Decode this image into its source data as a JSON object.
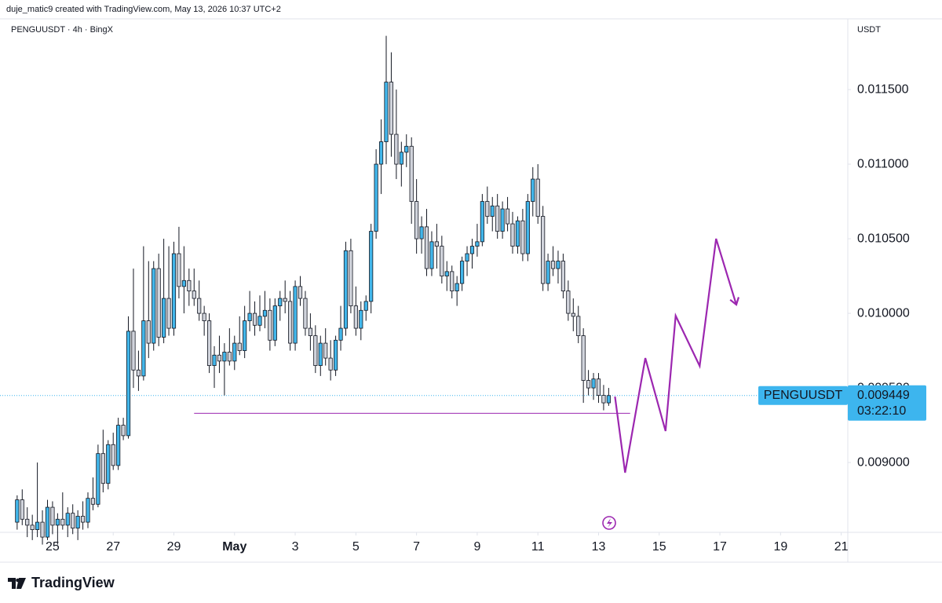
{
  "chart_data": {
    "type": "candlestick",
    "attribution": "duje_matic9 created with TradingView.com, May 13, 2026 10:37 UTC+2",
    "title": "PENGUUSDT · 4h · BingX",
    "currency": "USDT",
    "logo": "TradingView",
    "up_color": "#42b6ea",
    "down_color": "#d1d4dc",
    "xlim": [
      -36.6,
      629.2
    ],
    "xticks": [
      {
        "value": 0,
        "label": "25"
      },
      {
        "value": 48,
        "label": "27"
      },
      {
        "value": 96,
        "label": "29"
      },
      {
        "value": 144,
        "label": "May"
      },
      {
        "value": 192,
        "label": "3"
      },
      {
        "value": 240,
        "label": "5"
      },
      {
        "value": 288,
        "label": "7"
      },
      {
        "value": 336,
        "label": "9"
      },
      {
        "value": 384,
        "label": "11"
      },
      {
        "value": 432,
        "label": "13"
      },
      {
        "value": 480,
        "label": "15"
      },
      {
        "value": 528,
        "label": "17"
      },
      {
        "value": 576,
        "label": "19"
      },
      {
        "value": 624,
        "label": "21"
      }
    ],
    "ylim": [
      0.008532,
      0.011953
    ],
    "yticks": [
      {
        "value": 0.009,
        "label": "0.009000"
      },
      {
        "value": 0.0095,
        "label": "0.009500"
      },
      {
        "value": 0.01,
        "label": "0.010000"
      },
      {
        "value": 0.0105,
        "label": "0.010500"
      },
      {
        "value": 0.011,
        "label": "0.011000"
      },
      {
        "value": 0.0115,
        "label": "0.011500"
      }
    ],
    "grid": false,
    "x": [
      -28,
      -24,
      -20,
      -16,
      -12,
      -8,
      -4,
      0,
      4,
      8,
      12,
      16,
      20,
      24,
      28,
      32,
      36,
      40,
      44,
      48,
      52,
      56,
      60,
      64,
      68,
      72,
      76,
      80,
      84,
      88,
      92,
      96,
      100,
      104,
      108,
      112,
      116,
      120,
      124,
      128,
      132,
      136,
      140,
      144,
      148,
      152,
      156,
      160,
      164,
      168,
      172,
      176,
      180,
      184,
      188,
      192,
      196,
      200,
      204,
      208,
      212,
      216,
      220,
      224,
      228,
      232,
      236,
      240,
      244,
      248,
      252,
      256,
      260,
      264,
      268,
      272,
      276,
      280,
      284,
      288,
      292,
      296,
      300,
      304,
      308,
      312,
      316,
      320,
      324,
      328,
      332,
      336,
      340,
      344,
      348,
      352,
      356,
      360,
      364,
      368,
      372,
      376,
      380,
      384,
      388,
      392,
      396,
      400,
      404,
      408,
      412,
      416,
      420,
      424,
      428,
      432,
      436,
      440
    ],
    "candles": [
      [
        0.0086,
        0.00878,
        0.00855,
        0.00875
      ],
      [
        0.00875,
        0.00882,
        0.00858,
        0.00862
      ],
      [
        0.00862,
        0.0087,
        0.0085,
        0.00858
      ],
      [
        0.00858,
        0.00865,
        0.00848,
        0.00855
      ],
      [
        0.00855,
        0.009,
        0.0085,
        0.0086
      ],
      [
        0.0086,
        0.00868,
        0.00845,
        0.0085
      ],
      [
        0.0085,
        0.00875,
        0.00848,
        0.0087
      ],
      [
        0.0087,
        0.00874,
        0.00852,
        0.00858
      ],
      [
        0.00858,
        0.00866,
        0.00845,
        0.00862
      ],
      [
        0.00862,
        0.0088,
        0.00855,
        0.00858
      ],
      [
        0.00858,
        0.0087,
        0.0085,
        0.00866
      ],
      [
        0.00866,
        0.00872,
        0.00852,
        0.00856
      ],
      [
        0.00856,
        0.00868,
        0.00848,
        0.00864
      ],
      [
        0.00864,
        0.00874,
        0.00855,
        0.0086
      ],
      [
        0.0086,
        0.0088,
        0.00856,
        0.00876
      ],
      [
        0.00876,
        0.0089,
        0.00868,
        0.00872
      ],
      [
        0.00872,
        0.00912,
        0.0087,
        0.00906
      ],
      [
        0.00906,
        0.00922,
        0.0088,
        0.00886
      ],
      [
        0.00886,
        0.00915,
        0.00882,
        0.00912
      ],
      [
        0.00912,
        0.0092,
        0.00895,
        0.00898
      ],
      [
        0.00898,
        0.0093,
        0.00895,
        0.00925
      ],
      [
        0.00925,
        0.0093,
        0.00915,
        0.00918
      ],
      [
        0.00918,
        0.00998,
        0.00916,
        0.00988
      ],
      [
        0.00988,
        0.0103,
        0.0095,
        0.00962
      ],
      [
        0.00962,
        0.00975,
        0.00948,
        0.00958
      ],
      [
        0.00958,
        0.01045,
        0.00955,
        0.00995
      ],
      [
        0.00995,
        0.01035,
        0.0097,
        0.0098
      ],
      [
        0.0098,
        0.01035,
        0.00975,
        0.0103
      ],
      [
        0.0103,
        0.0104,
        0.00978,
        0.00984
      ],
      [
        0.00984,
        0.0105,
        0.0098,
        0.0101
      ],
      [
        0.0101,
        0.01045,
        0.00985,
        0.0099
      ],
      [
        0.0099,
        0.01048,
        0.00985,
        0.0104
      ],
      [
        0.0104,
        0.01058,
        0.0101,
        0.01018
      ],
      [
        0.01018,
        0.01045,
        0.01,
        0.01022
      ],
      [
        0.01022,
        0.0103,
        0.01005,
        0.01015
      ],
      [
        0.01015,
        0.0103,
        0.01005,
        0.0101
      ],
      [
        0.0101,
        0.01022,
        0.00995,
        0.01
      ],
      [
        0.01,
        0.01005,
        0.00985,
        0.00995
      ],
      [
        0.00995,
        0.01,
        0.0096,
        0.00965
      ],
      [
        0.00965,
        0.00978,
        0.0095,
        0.00972
      ],
      [
        0.00972,
        0.00985,
        0.0096,
        0.00968
      ],
      [
        0.00968,
        0.0098,
        0.00945,
        0.00974
      ],
      [
        0.00974,
        0.0099,
        0.00965,
        0.00968
      ],
      [
        0.00968,
        0.00985,
        0.00962,
        0.0098
      ],
      [
        0.0098,
        0.00998,
        0.00972,
        0.00975
      ],
      [
        0.00975,
        0.01005,
        0.0097,
        0.00995
      ],
      [
        0.00995,
        0.01015,
        0.00988,
        0.01
      ],
      [
        0.01,
        0.01008,
        0.00985,
        0.00992
      ],
      [
        0.00992,
        0.01012,
        0.00988,
        0.00998
      ],
      [
        0.00998,
        0.01015,
        0.0099,
        0.01002
      ],
      [
        0.01002,
        0.0101,
        0.00975,
        0.00982
      ],
      [
        0.00982,
        0.0101,
        0.00978,
        0.01005
      ],
      [
        0.01005,
        0.01015,
        0.00995,
        0.0101
      ],
      [
        0.0101,
        0.01022,
        0.01,
        0.01008
      ],
      [
        0.01008,
        0.01015,
        0.00975,
        0.0098
      ],
      [
        0.0098,
        0.01022,
        0.00975,
        0.01018
      ],
      [
        0.01018,
        0.01025,
        0.01005,
        0.0101
      ],
      [
        0.0101,
        0.01015,
        0.00985,
        0.0099
      ],
      [
        0.0099,
        0.01,
        0.00975,
        0.00985
      ],
      [
        0.00985,
        0.00992,
        0.0096,
        0.00965
      ],
      [
        0.00965,
        0.00985,
        0.00958,
        0.0098
      ],
      [
        0.0098,
        0.0099,
        0.00965,
        0.0097
      ],
      [
        0.0097,
        0.00982,
        0.00955,
        0.00962
      ],
      [
        0.00962,
        0.00985,
        0.00958,
        0.00982
      ],
      [
        0.00982,
        0.01005,
        0.00975,
        0.0099
      ],
      [
        0.0099,
        0.01048,
        0.00985,
        0.01042
      ],
      [
        0.01042,
        0.0105,
        0.01,
        0.01005
      ],
      [
        0.01005,
        0.01018,
        0.00985,
        0.0099
      ],
      [
        0.0099,
        0.01008,
        0.00982,
        0.01002
      ],
      [
        0.01002,
        0.01012,
        0.00995,
        0.01008
      ],
      [
        0.01008,
        0.0106,
        0.01,
        0.01055
      ],
      [
        0.01055,
        0.0111,
        0.0105,
        0.011
      ],
      [
        0.011,
        0.0113,
        0.0108,
        0.01115
      ],
      [
        0.01115,
        0.01186,
        0.011,
        0.01155
      ],
      [
        0.01155,
        0.01175,
        0.01105,
        0.0112
      ],
      [
        0.0112,
        0.0115,
        0.0109,
        0.011
      ],
      [
        0.011,
        0.01115,
        0.01085,
        0.01108
      ],
      [
        0.01108,
        0.0112,
        0.01098,
        0.01112
      ],
      [
        0.01112,
        0.01118,
        0.0106,
        0.01075
      ],
      [
        0.01075,
        0.0109,
        0.0104,
        0.0105
      ],
      [
        0.0105,
        0.01065,
        0.0104,
        0.01058
      ],
      [
        0.01058,
        0.0107,
        0.01025,
        0.0103
      ],
      [
        0.0103,
        0.01055,
        0.01025,
        0.01048
      ],
      [
        0.01048,
        0.0106,
        0.0103,
        0.01045
      ],
      [
        0.01045,
        0.01052,
        0.0102,
        0.01025
      ],
      [
        0.01025,
        0.01035,
        0.01015,
        0.01028
      ],
      [
        0.01028,
        0.01032,
        0.0101,
        0.01015
      ],
      [
        0.01015,
        0.01025,
        0.01005,
        0.0102
      ],
      [
        0.0102,
        0.01038,
        0.01015,
        0.01035
      ],
      [
        0.01035,
        0.01045,
        0.01025,
        0.0104
      ],
      [
        0.0104,
        0.0105,
        0.0103,
        0.01045
      ],
      [
        0.01045,
        0.0106,
        0.01038,
        0.01048
      ],
      [
        0.01048,
        0.0108,
        0.01045,
        0.01075
      ],
      [
        0.01075,
        0.01085,
        0.0106,
        0.01065
      ],
      [
        0.01065,
        0.01078,
        0.01055,
        0.01072
      ],
      [
        0.01072,
        0.0108,
        0.0105,
        0.01055
      ],
      [
        0.01055,
        0.01075,
        0.0105,
        0.0107
      ],
      [
        0.0107,
        0.01078,
        0.01055,
        0.0106
      ],
      [
        0.0106,
        0.01068,
        0.0104,
        0.01045
      ],
      [
        0.01045,
        0.01065,
        0.0104,
        0.01062
      ],
      [
        0.01062,
        0.0107,
        0.01035,
        0.0104
      ],
      [
        0.0104,
        0.0108,
        0.01035,
        0.01075
      ],
      [
        0.01075,
        0.01098,
        0.01065,
        0.0109
      ],
      [
        0.0109,
        0.011,
        0.0106,
        0.01065
      ],
      [
        0.01065,
        0.01072,
        0.01015,
        0.0102
      ],
      [
        0.0102,
        0.0104,
        0.01015,
        0.01035
      ],
      [
        0.01035,
        0.01045,
        0.01025,
        0.0103
      ],
      [
        0.0103,
        0.01042,
        0.0102,
        0.01035
      ],
      [
        0.01035,
        0.0104,
        0.0101,
        0.01015
      ],
      [
        0.01015,
        0.01022,
        0.00995,
        0.01
      ],
      [
        0.01,
        0.0101,
        0.00988,
        0.00998
      ],
      [
        0.00998,
        0.01005,
        0.0098,
        0.00985
      ],
      [
        0.00985,
        0.0099,
        0.0094,
        0.00955
      ],
      [
        0.00955,
        0.00962,
        0.00945,
        0.0095
      ],
      [
        0.0095,
        0.0096,
        0.00942,
        0.00956
      ],
      [
        0.00956,
        0.0096,
        0.0094,
        0.00945
      ],
      [
        0.00945,
        0.00952,
        0.00935,
        0.0094
      ],
      [
        0.0094,
        0.0095,
        0.00938,
        0.009449
      ]
    ],
    "last_price": {
      "name": "PENGUUSDT",
      "value": 0.009449,
      "countdown": "03:22:10",
      "color": "#3db5ee"
    },
    "drawings": [
      {
        "type": "hline",
        "color": "#9c27b0",
        "x": [
          112,
          457
        ],
        "y": [
          0.00933,
          0.00933
        ]
      },
      {
        "type": "path",
        "color": "#9c27b0",
        "x": [
          445,
          453,
          469,
          485,
          493,
          512,
          525,
          541
        ],
        "y": [
          0.009442,
          0.008932,
          0.0097,
          0.009211,
          0.009984,
          0.009647,
          0.0105,
          0.010058
        ]
      }
    ]
  }
}
